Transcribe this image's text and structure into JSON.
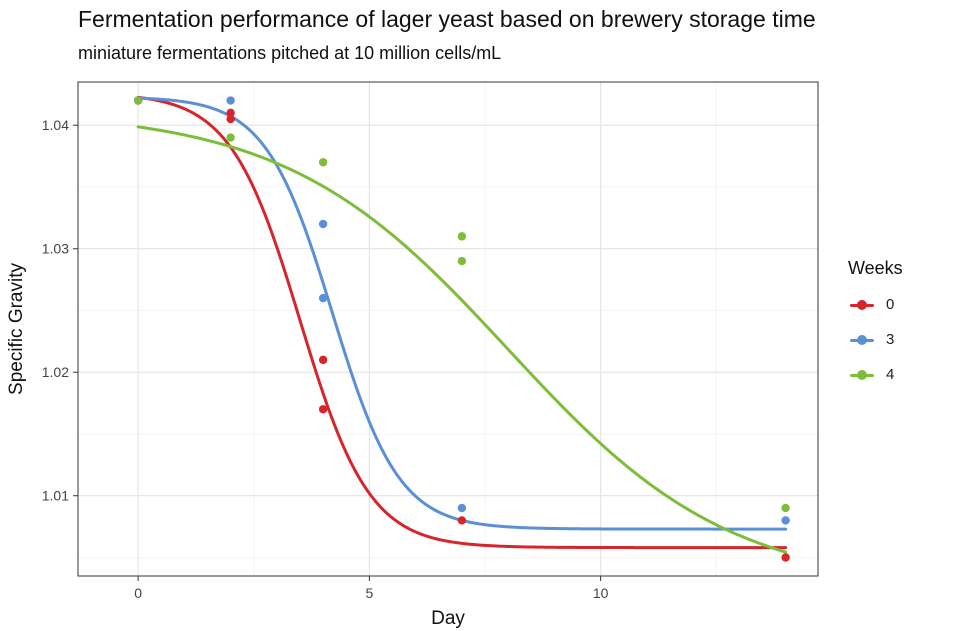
{
  "chart_data": {
    "type": "line",
    "title": "Fermentation performance of lager yeast based on brewery storage time",
    "subtitle": "miniature fermentations pitched at 10 million cells/mL",
    "xlabel": "Day",
    "ylabel": "Specific Gravity",
    "xlim": [
      -1.3,
      14.7
    ],
    "ylim": [
      1.0035,
      1.0435
    ],
    "x_ticks": [
      0,
      5,
      10
    ],
    "x_tick_labels": [
      "0",
      "5",
      "10"
    ],
    "y_ticks": [
      1.01,
      1.02,
      1.03,
      1.04
    ],
    "y_tick_labels": [
      "1.01",
      "1.02",
      "1.03",
      "1.04"
    ],
    "grid": true,
    "legend_title": "Weeks",
    "legend_position": "right",
    "series": [
      {
        "name": "0",
        "color": "#d7262b",
        "points": [
          [
            0,
            1.042
          ],
          [
            2,
            1.041
          ],
          [
            2,
            1.0405
          ],
          [
            4,
            1.021
          ],
          [
            4,
            1.017
          ],
          [
            7,
            1.008
          ],
          [
            14,
            1.005
          ]
        ],
        "fit": {
          "lower": 1.0058,
          "upper": 1.0426,
          "midpoint": 3.5,
          "scale": 0.75
        }
      },
      {
        "name": "3",
        "color": "#5b8fd6",
        "points": [
          [
            0,
            1.042
          ],
          [
            2,
            1.042
          ],
          [
            4,
            1.032
          ],
          [
            4,
            1.026
          ],
          [
            7,
            1.009
          ],
          [
            14,
            1.008
          ]
        ],
        "fit": {
          "lower": 1.0073,
          "upper": 1.0423,
          "midpoint": 4.2,
          "scale": 0.72
        }
      },
      {
        "name": "4",
        "color": "#7dbd3a",
        "points": [
          [
            0,
            1.042
          ],
          [
            2,
            1.039
          ],
          [
            4,
            1.037
          ],
          [
            7,
            1.031
          ],
          [
            7,
            1.029
          ],
          [
            14,
            1.009
          ]
        ],
        "fit": {
          "lower": 1.0025,
          "upper": 1.0412,
          "midpoint": 8.0,
          "scale": 2.4
        }
      }
    ]
  }
}
